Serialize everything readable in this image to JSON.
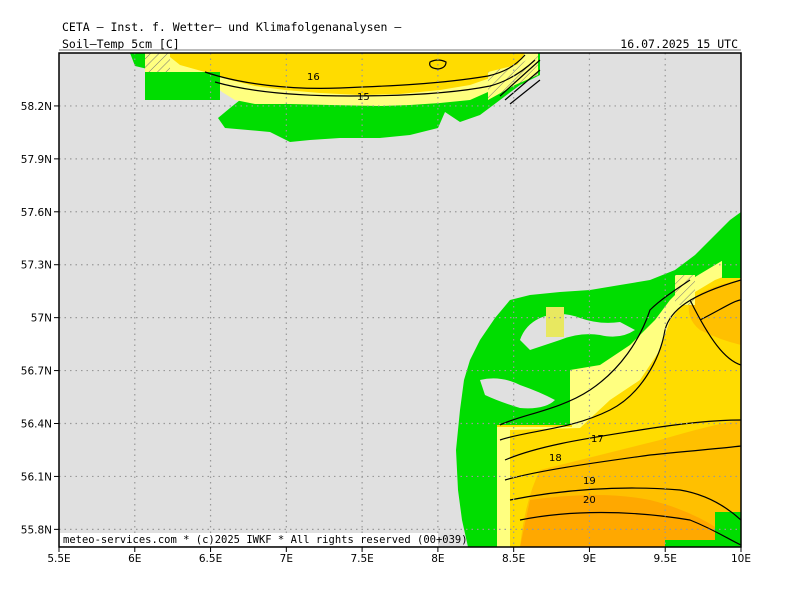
{
  "header": {
    "title": "CETA — Inst. f. Wetter— und Klimafolgenanalysen —",
    "field": "Soil—Temp 5cm [C]",
    "valid_time": "16.07.2025 15 UTC"
  },
  "footer": {
    "credit": "meteo-services.com * (c)2025 IWKF * All rights reserved (00+039)"
  },
  "axes": {
    "lon_ticks": [
      "5.5E",
      "6E",
      "6.5E",
      "7E",
      "7.5E",
      "8E",
      "8.5E",
      "9E",
      "9.5E",
      "10E"
    ],
    "lat_ticks": [
      "58.2N",
      "57.9N",
      "57.6N",
      "57.3N",
      "57N",
      "56.7N",
      "56.4N",
      "56.1N",
      "55.8N"
    ],
    "lon_range": [
      5.5,
      10.0
    ],
    "lat_range": [
      55.7,
      58.5
    ]
  },
  "contour_labels": [
    "16",
    "15",
    "17",
    "18",
    "19",
    "20"
  ],
  "colors": {
    "sea": "#e0e0e0",
    "land": "#00dd00",
    "temp_14_15": "#ffff80",
    "temp_15_17": "#ffdc00",
    "temp_17_plus": "#ffc000",
    "temp_19_plus": "#ffa800",
    "grid": "#999999"
  }
}
